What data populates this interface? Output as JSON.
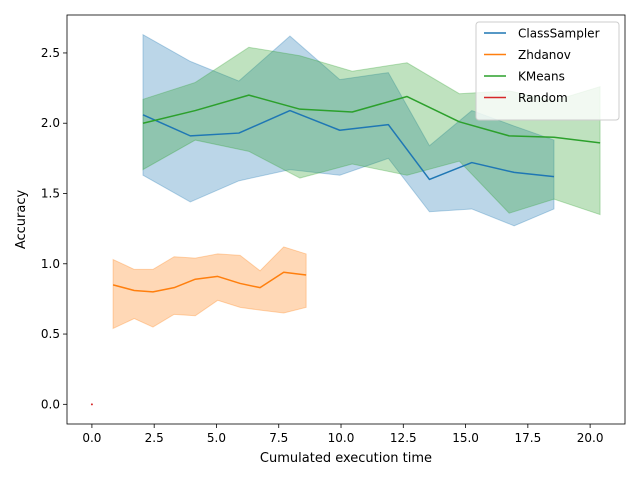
{
  "chart_data": {
    "type": "line",
    "title": "",
    "xlabel": "Cumulated execution time",
    "ylabel": "Accuracy",
    "xlim": [
      -1.0,
      21.4
    ],
    "ylim": [
      -0.14,
      2.77
    ],
    "xticks": [
      0.0,
      2.5,
      5.0,
      7.5,
      10.0,
      12.5,
      15.0,
      17.5,
      20.0
    ],
    "xtick_labels": [
      "0.0",
      "2.5",
      "5.0",
      "7.5",
      "10.0",
      "12.5",
      "15.0",
      "17.5",
      "20.0"
    ],
    "yticks": [
      0.0,
      0.5,
      1.0,
      1.5,
      2.0,
      2.5
    ],
    "ytick_labels": [
      "0.0",
      "0.5",
      "1.0",
      "1.5",
      "2.0",
      "2.5"
    ],
    "grid": false,
    "legend_position": "top-right",
    "series": [
      {
        "name": "ClassSampler",
        "color": "#1f77b4",
        "x": [
          2.05,
          3.95,
          5.9,
          7.95,
          9.95,
          11.9,
          13.55,
          15.25,
          16.95,
          18.55
        ],
        "y": [
          2.06,
          1.91,
          1.93,
          2.09,
          1.95,
          1.99,
          1.6,
          1.72,
          1.65,
          1.62
        ],
        "lower": [
          1.63,
          1.44,
          1.59,
          1.67,
          1.63,
          1.75,
          1.37,
          1.39,
          1.27,
          1.39
        ],
        "upper": [
          2.63,
          2.44,
          2.3,
          2.62,
          2.31,
          2.36,
          1.84,
          2.09,
          1.98,
          1.88
        ]
      },
      {
        "name": "Zhdanov",
        "color": "#ff7f0e",
        "x": [
          0.85,
          1.7,
          2.45,
          3.3,
          4.15,
          5.05,
          5.95,
          6.75,
          7.7,
          8.6
        ],
        "y": [
          0.85,
          0.81,
          0.8,
          0.83,
          0.89,
          0.91,
          0.86,
          0.83,
          0.94,
          0.92
        ],
        "lower": [
          0.54,
          0.61,
          0.55,
          0.64,
          0.63,
          0.74,
          0.69,
          0.67,
          0.65,
          0.69
        ],
        "upper": [
          1.03,
          0.96,
          0.96,
          1.05,
          1.04,
          1.07,
          1.06,
          0.95,
          1.12,
          1.07
        ]
      },
      {
        "name": "KMeans",
        "color": "#2ca02c",
        "x": [
          2.05,
          4.15,
          6.3,
          8.35,
          10.45,
          12.65,
          14.75,
          16.75,
          18.55,
          20.4
        ],
        "y": [
          2.0,
          2.09,
          2.2,
          2.1,
          2.08,
          2.19,
          2.01,
          1.91,
          1.9,
          1.86
        ],
        "lower": [
          1.67,
          1.88,
          1.8,
          1.61,
          1.71,
          1.63,
          1.73,
          1.36,
          1.46,
          1.35
        ],
        "upper": [
          2.17,
          2.29,
          2.54,
          2.48,
          2.37,
          2.43,
          2.21,
          2.23,
          2.16,
          2.26
        ]
      },
      {
        "name": "Random",
        "color": "#d62728",
        "x": [
          0.0
        ],
        "y": [
          0.0
        ],
        "lower": [
          0.0
        ],
        "upper": [
          0.0
        ]
      }
    ]
  }
}
